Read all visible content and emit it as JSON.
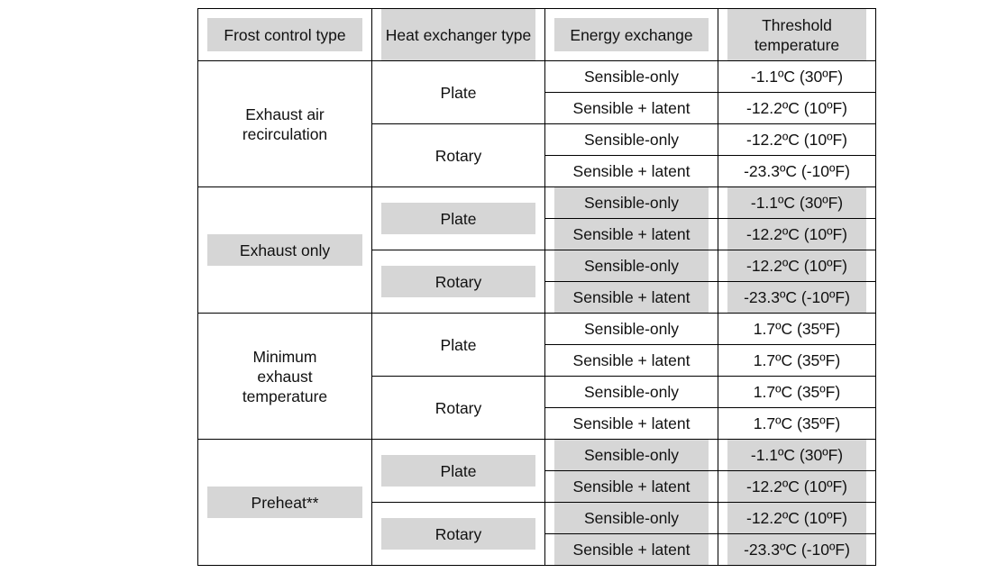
{
  "headers": {
    "frost_control_type": "Frost control type",
    "heat_exchanger_type": "Heat exchanger type",
    "energy_exchange": "Energy exchange",
    "threshold_temperature": "Threshold temperature"
  },
  "groups": [
    {
      "frost_control": "Exhaust air recirculation",
      "shaded": false,
      "exchangers": [
        {
          "type": "Plate",
          "rows": [
            {
              "energy": "Sensible-only",
              "threshold": "-1.1ºC (30ºF)"
            },
            {
              "energy": "Sensible + latent",
              "threshold": "-12.2ºC (10ºF)"
            }
          ]
        },
        {
          "type": "Rotary",
          "rows": [
            {
              "energy": "Sensible-only",
              "threshold": "-12.2ºC (10ºF)"
            },
            {
              "energy": "Sensible + latent",
              "threshold": "-23.3ºC (-10ºF)"
            }
          ]
        }
      ]
    },
    {
      "frost_control": "Exhaust only",
      "shaded": true,
      "exchangers": [
        {
          "type": "Plate",
          "rows": [
            {
              "energy": "Sensible-only",
              "threshold": "-1.1ºC (30ºF)"
            },
            {
              "energy": "Sensible + latent",
              "threshold": "-12.2ºC (10ºF)"
            }
          ]
        },
        {
          "type": "Rotary",
          "rows": [
            {
              "energy": "Sensible-only",
              "threshold": "-12.2ºC (10ºF)"
            },
            {
              "energy": "Sensible + latent",
              "threshold": "-23.3ºC (-10ºF)"
            }
          ]
        }
      ]
    },
    {
      "frost_control": "Minimum exhaust temperature",
      "shaded": false,
      "exchangers": [
        {
          "type": "Plate",
          "rows": [
            {
              "energy": "Sensible-only",
              "threshold": "1.7ºC (35ºF)"
            },
            {
              "energy": "Sensible + latent",
              "threshold": "1.7ºC (35ºF)"
            }
          ]
        },
        {
          "type": "Rotary",
          "rows": [
            {
              "energy": "Sensible-only",
              "threshold": "1.7ºC (35ºF)"
            },
            {
              "energy": "Sensible + latent",
              "threshold": "1.7ºC (35ºF)"
            }
          ]
        }
      ]
    },
    {
      "frost_control": "Preheat**",
      "shaded": true,
      "exchangers": [
        {
          "type": "Plate",
          "rows": [
            {
              "energy": "Sensible-only",
              "threshold": "-1.1ºC (30ºF)"
            },
            {
              "energy": "Sensible + latent",
              "threshold": "-12.2ºC (10ºF)"
            }
          ]
        },
        {
          "type": "Rotary",
          "rows": [
            {
              "energy": "Sensible-only",
              "threshold": "-12.2ºC (10ºF)"
            },
            {
              "energy": "Sensible + latent",
              "threshold": "-23.3ºC (-10ºF)"
            }
          ]
        }
      ]
    }
  ],
  "colors": {
    "shade": "#d6d6d6",
    "border": "#000000"
  }
}
